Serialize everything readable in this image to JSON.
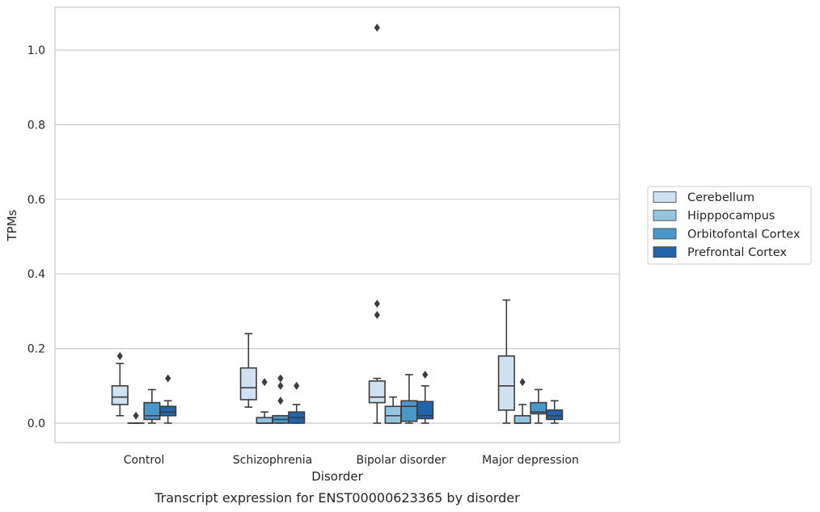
{
  "chart_data": {
    "type": "box",
    "title": "",
    "caption": "Transcript expression for ENST00000623365 by disorder",
    "xlabel": "Disorder",
    "ylabel": "TPMs",
    "ylim": [
      -0.05,
      1.11
    ],
    "yticks": [
      0.0,
      0.2,
      0.4,
      0.6,
      0.8,
      1.0
    ],
    "ytick_labels": [
      "0.0",
      "0.2",
      "0.4",
      "0.6",
      "0.8",
      "1.0"
    ],
    "grid": "horizontal",
    "legend_position": "right",
    "categories": [
      "Control",
      "Schizophrenia",
      "Bipolar disorder",
      "Major depression"
    ],
    "series": [
      {
        "name": "Cerebellum",
        "color": "#d0e1f2",
        "boxes": [
          {
            "whisker_low": 0.02,
            "q1": 0.05,
            "median": 0.07,
            "q3": 0.1,
            "whisker_high": 0.16,
            "outliers": [
              0.18
            ]
          },
          {
            "whisker_low": 0.043,
            "q1": 0.063,
            "median": 0.095,
            "q3": 0.148,
            "whisker_high": 0.24,
            "outliers": []
          },
          {
            "whisker_low": 0.0,
            "q1": 0.055,
            "median": 0.07,
            "q3": 0.113,
            "whisker_high": 0.12,
            "outliers": [
              0.29,
              0.32,
              1.06
            ]
          },
          {
            "whisker_low": 0.0,
            "q1": 0.035,
            "median": 0.1,
            "q3": 0.18,
            "whisker_high": 0.33,
            "outliers": []
          }
        ]
      },
      {
        "name": "Hipppocampus",
        "color": "#94c4df",
        "boxes": [
          {
            "whisker_low": 0.0,
            "q1": 0.0,
            "median": 0.0,
            "q3": 0.0,
            "whisker_high": 0.0,
            "outliers": [
              0.02
            ]
          },
          {
            "whisker_low": 0.0,
            "q1": 0.0,
            "median": 0.0,
            "q3": 0.015,
            "whisker_high": 0.03,
            "outliers": [
              0.11
            ]
          },
          {
            "whisker_low": 0.0,
            "q1": 0.0,
            "median": 0.02,
            "q3": 0.045,
            "whisker_high": 0.07,
            "outliers": []
          },
          {
            "whisker_low": 0.0,
            "q1": 0.0,
            "median": 0.0,
            "q3": 0.02,
            "whisker_high": 0.05,
            "outliers": [
              0.11
            ]
          }
        ]
      },
      {
        "name": "Orbitofontal Cortex",
        "color": "#4a98c9",
        "boxes": [
          {
            "whisker_low": 0.0,
            "q1": 0.01,
            "median": 0.02,
            "q3": 0.055,
            "whisker_high": 0.09,
            "outliers": []
          },
          {
            "whisker_low": 0.0,
            "q1": 0.0,
            "median": 0.01,
            "q3": 0.02,
            "whisker_high": 0.02,
            "outliers": [
              0.06,
              0.1,
              0.12
            ]
          },
          {
            "whisker_low": 0.0,
            "q1": 0.005,
            "median": 0.045,
            "q3": 0.06,
            "whisker_high": 0.13,
            "outliers": []
          },
          {
            "whisker_low": 0.0,
            "q1": 0.025,
            "median": 0.03,
            "q3": 0.055,
            "whisker_high": 0.09,
            "outliers": []
          }
        ]
      },
      {
        "name": "Prefrontal Cortex",
        "color": "#2164ab",
        "boxes": [
          {
            "whisker_low": 0.0,
            "q1": 0.02,
            "median": 0.03,
            "q3": 0.045,
            "whisker_high": 0.06,
            "outliers": [
              0.12
            ]
          },
          {
            "whisker_low": 0.0,
            "q1": 0.0,
            "median": 0.015,
            "q3": 0.03,
            "whisker_high": 0.05,
            "outliers": [
              0.1
            ]
          },
          {
            "whisker_low": 0.0,
            "q1": 0.012,
            "median": 0.02,
            "q3": 0.058,
            "whisker_high": 0.1,
            "outliers": [
              0.13
            ]
          },
          {
            "whisker_low": 0.0,
            "q1": 0.01,
            "median": 0.02,
            "q3": 0.035,
            "whisker_high": 0.06,
            "outliers": []
          }
        ]
      }
    ]
  }
}
